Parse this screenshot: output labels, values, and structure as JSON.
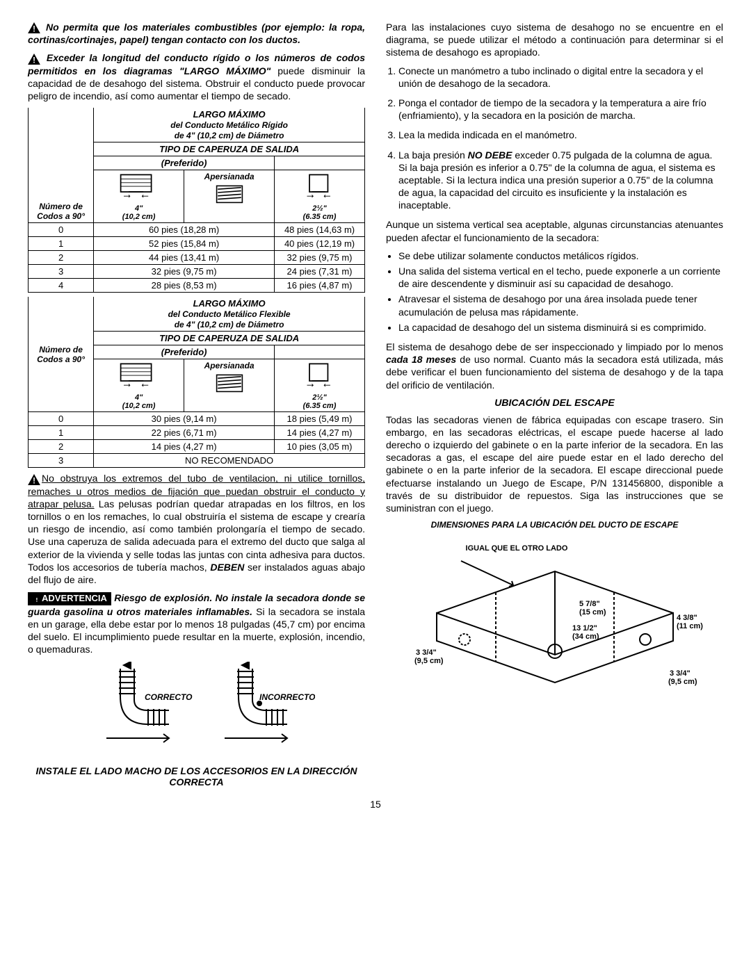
{
  "left": {
    "warn1": "No permita que los materiales combustibles (por ejemplo: la ropa, cortinas/cortinajes, papel) tengan contacto con los ductos.",
    "warn2a": "Exceder la longitud del conducto rígido o los números de codos permitidos en los diagramas \"LARGO MÁXIMO\"",
    "warn2b": " puede disminuir la capacidad de de desahogo del sistema. Obstruir el conducto puede provocar peligro de incendio, así como aumentar el tiempo de secado.",
    "table1_title1": "LARGO MÁXIMO",
    "table1_title2": "del Conducto Metálico Rígido",
    "table1_title3": "de 4\" (10,2 cm) de Diámetro",
    "tipo": "TIPO DE CAPERUZA DE SALIDA",
    "preferido": "(Preferido)",
    "numero": "Número de Codos a 90°",
    "apersianada": "Apersianada",
    "dim4": "4\"",
    "dim4cm": "(10,2 cm)",
    "dim25": "2½\"",
    "dim25cm": "(6.35 cm)",
    "rigid_rows": [
      {
        "n": "0",
        "a": "60 pies (18,28 m)",
        "b": "48 pies (14,63 m)"
      },
      {
        "n": "1",
        "a": "52 pies (15,84 m)",
        "b": "40 pies (12,19 m)"
      },
      {
        "n": "2",
        "a": "44 pies (13,41 m)",
        "b": "32 pies (9,75 m)"
      },
      {
        "n": "3",
        "a": "32 pies (9,75 m)",
        "b": "24 pies (7,31 m)"
      },
      {
        "n": "4",
        "a": "28 pies (8,53 m)",
        "b": "16 pies (4,87 m)"
      }
    ],
    "table2_title2": "del Conducto Metálico Flexible",
    "flex_rows": [
      {
        "n": "0",
        "a": "30 pies (9,14 m)",
        "b": "18 pies (5,49 m)"
      },
      {
        "n": "1",
        "a": "22 pies (6,71 m)",
        "b": "14 pies (4,27 m)"
      },
      {
        "n": "2",
        "a": "14 pies (4,27 m)",
        "b": "10 pies (3,05 m)"
      }
    ],
    "no_rec_n": "3",
    "no_rec": "NO RECOMENDADO",
    "para_obstr_a": "No obstruya los extremos del tubo de ventilacion, ni utilice tornillos, remaches u otros medios de fijación que puedan obstruir el conducto y atrapar pelusa.",
    "para_obstr_b": " Las pelusas podrían quedar atrapadas en los filtros, en los tornillos o en los remaches, lo cual obstruiría el sistema de escape y crearía un riesgo de incendio, así como también prolongaría el tiempo de secado. Use una caperuza de salida adecuada para el extremo del ducto que salga al exterior de la vivienda y selle todas las juntas con cinta adhesiva para ductos. Todos los accesorios de tubería machos, ",
    "deben": "DEBEN",
    "para_obstr_c": " ser instalados aguas abajo del flujo de aire.",
    "adv_label": "ADVERTENCIA",
    "adv_a": "Riesgo de explosión",
    "adv_b": ". No instale la secadora donde se guarda gasolina u otros materiales inflamables.",
    "adv_c": " Si la secadora se instala en un garage, ella debe estar por lo menos 18 pulgadas (45,7 cm) por encima del suelo. El incumplimiento puede resultar en la muerte, explosión, incendio, o quemaduras.",
    "correcto": "CORRECTO",
    "incorrecto": "INCORRECTO",
    "instale": "INSTALE EL LADO MACHO DE LOS ACCESORIOS EN LA DIRECCIÓN CORRECTA"
  },
  "right": {
    "intro": "Para las instalaciones cuyo sistema de desahogo no se encuentre en el diagrama, se puede utilizar el método a continuación para determinar si el sistema de desahogo es apropiado.",
    "steps": [
      "Conecte un manómetro a tubo inclinado o digital entre la secadora y el unión de desahogo de la secadora.",
      "Ponga el contador de tiempo de la secadora y la temperatura a aire frío (enfriamiento), y la secadora en la posición de marcha.",
      "Lea la medida indicada en el manómetro."
    ],
    "step4a": "La baja presión ",
    "step4b": "NO DEBE",
    "step4c": " exceder 0.75 pulgada de la columna de agua. Si la baja presión es inferior a 0.75\" de la columna de agua, el sistema es aceptable. Si la lectura indica una presión superior a 0.75\" de la columna de agua, la capacidad del circuito es insuficiente y la instalación es inaceptable.",
    "aunque": "Aunque un sistema vertical sea aceptable, algunas circunstancias atenuantes pueden afectar el funcionamiento de la secadora:",
    "bullets": [
      "Se debe utilizar solamente conductos metálicos rígidos.",
      "Una salida del sistema vertical en el techo, puede exponerle a un corriente de aire descendente y disminuir así su capacidad de desahogo.",
      "Atravesar el sistema de desahogo por una área insolada puede tener acumulación de pelusa mas rápidamente.",
      "La capacidad de desahogo del un sistema disminuirá si es comprimido."
    ],
    "sist_a": "El sistema de desahogo debe de ser inspeccionado y limpiado por lo menos ",
    "sist_b": "cada 18 meses",
    "sist_c": " de uso normal. Cuanto más la secadora está utilizada, más debe verificar el buen funcionamiento del sistema de desahogo y de la tapa del orificio de ventilación.",
    "ubic_head": "UBICACIÓN DEL ESCAPE",
    "ubic_para": "Todas las secadoras vienen de fábrica equipadas con escape trasero. Sin embargo, en las secadoras eléctricas, el escape puede hacerse al lado derecho o izquierdo del gabinete o en la parte inferior de la secadora. En las secadoras a gas, el escape del aire puede estar en el lado derecho del gabinete o en la parte inferior de la secadora. El escape direccional puede efectuarse instalando un Juego de Escape, P/N 131456800, disponible a través de su distribuidor de repuestos. Siga las instrucciones que se suministran con el juego.",
    "dim_head": "DIMENSIONES PARA LA UBICACIÓN DEL DUCTO DE ESCAPE",
    "igual": "IGUAL QUE EL OTRO LADO",
    "d1": "5 7/8\"",
    "d1m": "(15 cm)",
    "d2": "13 1/2\"",
    "d2m": "(34 cm)",
    "d3": "3 3/4\"",
    "d3m": "(9,5 cm)",
    "d4": "4 3/8\"",
    "d4m": "(11 cm)",
    "d5": "3 3/4\"",
    "d5m": "(9,5 cm)"
  },
  "page": "15"
}
